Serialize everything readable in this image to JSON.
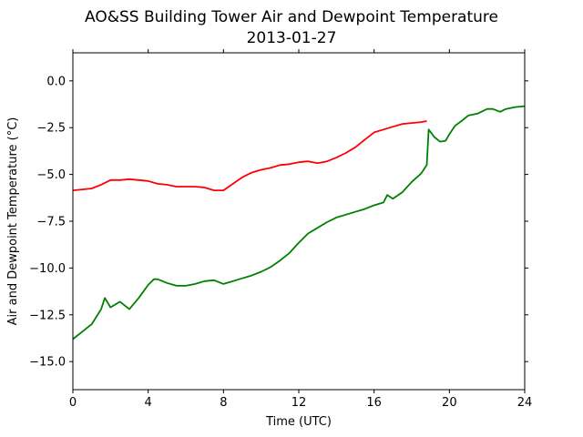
{
  "chart_data": {
    "type": "line",
    "title": "AO&SS Building Tower Air and Dewpoint Temperature",
    "subtitle": "2013-01-27",
    "xlabel": "Time (UTC)",
    "ylabel": "Air and Dewpoint Temperature (°C)",
    "xlim": [
      0,
      24
    ],
    "ylim": [
      -16.5,
      1.5
    ],
    "xticks": [
      0,
      4,
      8,
      12,
      16,
      20,
      24
    ],
    "xtick_labels": [
      "0",
      "4",
      "8",
      "12",
      "16",
      "20",
      "24"
    ],
    "yticks": [
      0.0,
      -2.5,
      -5.0,
      -7.5,
      -10.0,
      -12.5,
      -15.0
    ],
    "ytick_labels": [
      "0.0",
      "−2.5",
      "−5.0",
      "−7.5",
      "−10.0",
      "−12.5",
      "−15.0"
    ],
    "grid": false,
    "series": [
      {
        "color": "#ff0000",
        "x": [
          0,
          0.5,
          1,
          1.5,
          2,
          2.5,
          3,
          3.5,
          4,
          4.5,
          5,
          5.5,
          6,
          6.5,
          7,
          7.5,
          8,
          8.5,
          9,
          9.5,
          10,
          10.5,
          11,
          11.5,
          12,
          12.5,
          13,
          13.5,
          14,
          14.5,
          15,
          15.5,
          16,
          16.5,
          17,
          17.5,
          18,
          18.5,
          18.8
        ],
        "y": [
          -5.85,
          -5.8,
          -5.75,
          -5.55,
          -5.3,
          -5.3,
          -5.25,
          -5.3,
          -5.35,
          -5.5,
          -5.55,
          -5.65,
          -5.65,
          -5.65,
          -5.7,
          -5.85,
          -5.85,
          -5.5,
          -5.15,
          -4.9,
          -4.75,
          -4.65,
          -4.5,
          -4.45,
          -4.35,
          -4.3,
          -4.4,
          -4.3,
          -4.1,
          -3.85,
          -3.55,
          -3.15,
          -2.75,
          -2.6,
          -2.45,
          -2.3,
          -2.25,
          -2.2,
          -2.15
        ]
      },
      {
        "color": "#008000",
        "x": [
          0,
          0.5,
          1,
          1.5,
          1.7,
          2,
          2.5,
          3,
          3.5,
          4,
          4.3,
          4.5,
          5,
          5.5,
          6,
          6.5,
          7,
          7.5,
          8,
          8.5,
          9,
          9.5,
          10,
          10.5,
          11,
          11.5,
          12,
          12.5,
          13,
          13.5,
          14,
          14.5,
          15,
          15.5,
          16,
          16.5,
          16.7,
          17,
          17.5,
          18,
          18.5,
          18.8,
          18.9,
          19.2,
          19.5,
          19.8,
          20,
          20.3,
          20.7,
          21,
          21.5,
          22,
          22.3,
          22.7,
          23,
          23.5,
          24
        ],
        "y": [
          -13.8,
          -13.4,
          -13,
          -12.2,
          -11.6,
          -12.1,
          -11.8,
          -12.2,
          -11.6,
          -10.9,
          -10.6,
          -10.6,
          -10.8,
          -10.95,
          -10.95,
          -10.85,
          -10.7,
          -10.65,
          -10.85,
          -10.7,
          -10.55,
          -10.4,
          -10.2,
          -9.95,
          -9.6,
          -9.2,
          -8.65,
          -8.15,
          -7.85,
          -7.55,
          -7.3,
          -7.15,
          -7.0,
          -6.85,
          -6.65,
          -6.5,
          -6.1,
          -6.3,
          -5.95,
          -5.4,
          -4.95,
          -4.5,
          -2.6,
          -3.0,
          -3.25,
          -3.2,
          -2.85,
          -2.4,
          -2.1,
          -1.85,
          -1.75,
          -1.5,
          -1.5,
          -1.65,
          -1.5,
          -1.4,
          -1.35
        ]
      }
    ]
  }
}
